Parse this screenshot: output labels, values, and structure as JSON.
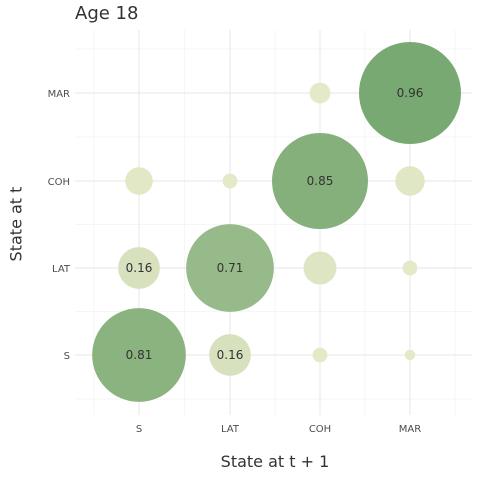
{
  "chart_data": {
    "type": "scatter",
    "title": "Age 18",
    "xlabel": "State at t + 1",
    "ylabel": "State at t",
    "x_categories": [
      "S",
      "LAT",
      "COH",
      "MAR"
    ],
    "y_categories": [
      "S",
      "LAT",
      "COH",
      "MAR"
    ],
    "grid": true,
    "legend": "none",
    "size_encodes": "transition probability",
    "points": [
      {
        "from": "S",
        "to": "S",
        "value": 0.81,
        "label": "0.81"
      },
      {
        "from": "S",
        "to": "LAT",
        "value": 0.16,
        "label": "0.16"
      },
      {
        "from": "S",
        "to": "COH",
        "value": 0.02,
        "label": ""
      },
      {
        "from": "S",
        "to": "MAR",
        "value": 0.01,
        "label": ""
      },
      {
        "from": "LAT",
        "to": "S",
        "value": 0.16,
        "label": "0.16"
      },
      {
        "from": "LAT",
        "to": "LAT",
        "value": 0.71,
        "label": "0.71"
      },
      {
        "from": "LAT",
        "to": "COH",
        "value": 0.1,
        "label": ""
      },
      {
        "from": "LAT",
        "to": "MAR",
        "value": 0.02,
        "label": ""
      },
      {
        "from": "COH",
        "to": "S",
        "value": 0.07,
        "label": ""
      },
      {
        "from": "COH",
        "to": "LAT",
        "value": 0.02,
        "label": ""
      },
      {
        "from": "COH",
        "to": "COH",
        "value": 0.85,
        "label": "0.85"
      },
      {
        "from": "COH",
        "to": "MAR",
        "value": 0.08,
        "label": ""
      },
      {
        "from": "MAR",
        "to": "COH",
        "value": 0.04,
        "label": ""
      },
      {
        "from": "MAR",
        "to": "MAR",
        "value": 0.96,
        "label": "0.96"
      }
    ],
    "colors": {
      "low": "#e4e9c8",
      "high": "#79a972",
      "grid": "#ebebeb"
    }
  }
}
